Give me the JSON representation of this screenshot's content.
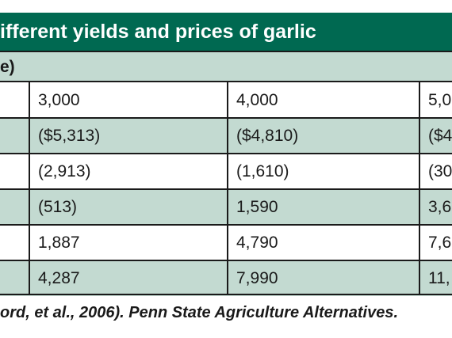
{
  "table": {
    "title": "ifferent yields and prices of garlic",
    "subtitle": "e)",
    "rows": [
      [
        "",
        "3,000",
        "4,000",
        "5,0"
      ],
      [
        "",
        "($5,313)",
        "($4,810)",
        "($4"
      ],
      [
        "",
        "(2,913)",
        "(1,610)",
        "(30"
      ],
      [
        "",
        "(513)",
        "1,590",
        "3,6"
      ],
      [
        "",
        "1,887",
        "4,790",
        "7,6"
      ],
      [
        "",
        "4,287",
        "7,990",
        "11,"
      ]
    ]
  },
  "source": {
    "text": "ord, et al., 2006). Penn State Agriculture Alternatives."
  },
  "colors": {
    "header_bg": "#006951",
    "band_bg": "#c3dad1",
    "rule": "#1a1a1a"
  }
}
